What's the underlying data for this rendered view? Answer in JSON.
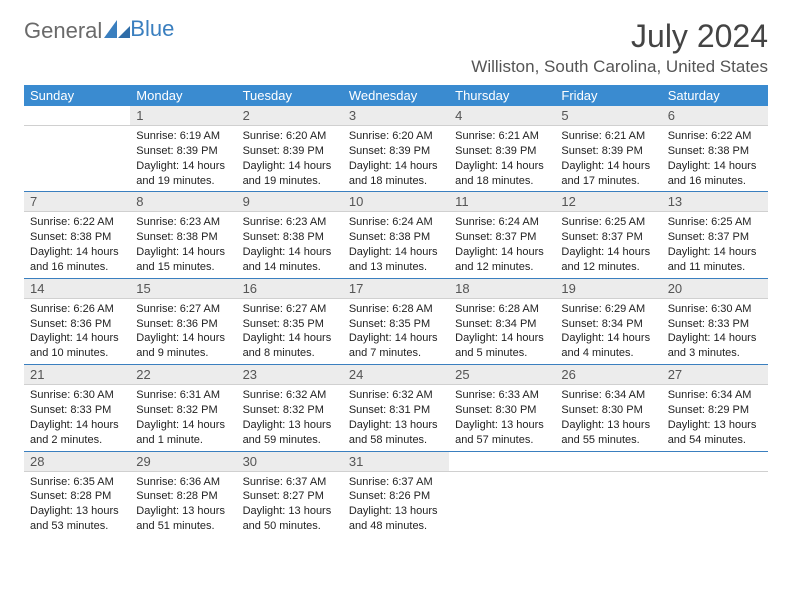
{
  "brand": {
    "general": "General",
    "blue": "Blue"
  },
  "title": "July 2024",
  "location": "Williston, South Carolina, United States",
  "colors": {
    "header_bg": "#3a8bd0",
    "header_text": "#ffffff",
    "daynum_bg": "#ececec",
    "row_sep": "#3a7fbf",
    "text": "#222222",
    "logo_gray": "#6a6a6a",
    "logo_blue": "#3a7fbf"
  },
  "weekdays": [
    "Sunday",
    "Monday",
    "Tuesday",
    "Wednesday",
    "Thursday",
    "Friday",
    "Saturday"
  ],
  "weeks": [
    [
      {
        "n": "",
        "sr": "",
        "ss": "",
        "dl": ""
      },
      {
        "n": "1",
        "sr": "Sunrise: 6:19 AM",
        "ss": "Sunset: 8:39 PM",
        "dl": "Daylight: 14 hours and 19 minutes."
      },
      {
        "n": "2",
        "sr": "Sunrise: 6:20 AM",
        "ss": "Sunset: 8:39 PM",
        "dl": "Daylight: 14 hours and 19 minutes."
      },
      {
        "n": "3",
        "sr": "Sunrise: 6:20 AM",
        "ss": "Sunset: 8:39 PM",
        "dl": "Daylight: 14 hours and 18 minutes."
      },
      {
        "n": "4",
        "sr": "Sunrise: 6:21 AM",
        "ss": "Sunset: 8:39 PM",
        "dl": "Daylight: 14 hours and 18 minutes."
      },
      {
        "n": "5",
        "sr": "Sunrise: 6:21 AM",
        "ss": "Sunset: 8:39 PM",
        "dl": "Daylight: 14 hours and 17 minutes."
      },
      {
        "n": "6",
        "sr": "Sunrise: 6:22 AM",
        "ss": "Sunset: 8:38 PM",
        "dl": "Daylight: 14 hours and 16 minutes."
      }
    ],
    [
      {
        "n": "7",
        "sr": "Sunrise: 6:22 AM",
        "ss": "Sunset: 8:38 PM",
        "dl": "Daylight: 14 hours and 16 minutes."
      },
      {
        "n": "8",
        "sr": "Sunrise: 6:23 AM",
        "ss": "Sunset: 8:38 PM",
        "dl": "Daylight: 14 hours and 15 minutes."
      },
      {
        "n": "9",
        "sr": "Sunrise: 6:23 AM",
        "ss": "Sunset: 8:38 PM",
        "dl": "Daylight: 14 hours and 14 minutes."
      },
      {
        "n": "10",
        "sr": "Sunrise: 6:24 AM",
        "ss": "Sunset: 8:38 PM",
        "dl": "Daylight: 14 hours and 13 minutes."
      },
      {
        "n": "11",
        "sr": "Sunrise: 6:24 AM",
        "ss": "Sunset: 8:37 PM",
        "dl": "Daylight: 14 hours and 12 minutes."
      },
      {
        "n": "12",
        "sr": "Sunrise: 6:25 AM",
        "ss": "Sunset: 8:37 PM",
        "dl": "Daylight: 14 hours and 12 minutes."
      },
      {
        "n": "13",
        "sr": "Sunrise: 6:25 AM",
        "ss": "Sunset: 8:37 PM",
        "dl": "Daylight: 14 hours and 11 minutes."
      }
    ],
    [
      {
        "n": "14",
        "sr": "Sunrise: 6:26 AM",
        "ss": "Sunset: 8:36 PM",
        "dl": "Daylight: 14 hours and 10 minutes."
      },
      {
        "n": "15",
        "sr": "Sunrise: 6:27 AM",
        "ss": "Sunset: 8:36 PM",
        "dl": "Daylight: 14 hours and 9 minutes."
      },
      {
        "n": "16",
        "sr": "Sunrise: 6:27 AM",
        "ss": "Sunset: 8:35 PM",
        "dl": "Daylight: 14 hours and 8 minutes."
      },
      {
        "n": "17",
        "sr": "Sunrise: 6:28 AM",
        "ss": "Sunset: 8:35 PM",
        "dl": "Daylight: 14 hours and 7 minutes."
      },
      {
        "n": "18",
        "sr": "Sunrise: 6:28 AM",
        "ss": "Sunset: 8:34 PM",
        "dl": "Daylight: 14 hours and 5 minutes."
      },
      {
        "n": "19",
        "sr": "Sunrise: 6:29 AM",
        "ss": "Sunset: 8:34 PM",
        "dl": "Daylight: 14 hours and 4 minutes."
      },
      {
        "n": "20",
        "sr": "Sunrise: 6:30 AM",
        "ss": "Sunset: 8:33 PM",
        "dl": "Daylight: 14 hours and 3 minutes."
      }
    ],
    [
      {
        "n": "21",
        "sr": "Sunrise: 6:30 AM",
        "ss": "Sunset: 8:33 PM",
        "dl": "Daylight: 14 hours and 2 minutes."
      },
      {
        "n": "22",
        "sr": "Sunrise: 6:31 AM",
        "ss": "Sunset: 8:32 PM",
        "dl": "Daylight: 14 hours and 1 minute."
      },
      {
        "n": "23",
        "sr": "Sunrise: 6:32 AM",
        "ss": "Sunset: 8:32 PM",
        "dl": "Daylight: 13 hours and 59 minutes."
      },
      {
        "n": "24",
        "sr": "Sunrise: 6:32 AM",
        "ss": "Sunset: 8:31 PM",
        "dl": "Daylight: 13 hours and 58 minutes."
      },
      {
        "n": "25",
        "sr": "Sunrise: 6:33 AM",
        "ss": "Sunset: 8:30 PM",
        "dl": "Daylight: 13 hours and 57 minutes."
      },
      {
        "n": "26",
        "sr": "Sunrise: 6:34 AM",
        "ss": "Sunset: 8:30 PM",
        "dl": "Daylight: 13 hours and 55 minutes."
      },
      {
        "n": "27",
        "sr": "Sunrise: 6:34 AM",
        "ss": "Sunset: 8:29 PM",
        "dl": "Daylight: 13 hours and 54 minutes."
      }
    ],
    [
      {
        "n": "28",
        "sr": "Sunrise: 6:35 AM",
        "ss": "Sunset: 8:28 PM",
        "dl": "Daylight: 13 hours and 53 minutes."
      },
      {
        "n": "29",
        "sr": "Sunrise: 6:36 AM",
        "ss": "Sunset: 8:28 PM",
        "dl": "Daylight: 13 hours and 51 minutes."
      },
      {
        "n": "30",
        "sr": "Sunrise: 6:37 AM",
        "ss": "Sunset: 8:27 PM",
        "dl": "Daylight: 13 hours and 50 minutes."
      },
      {
        "n": "31",
        "sr": "Sunrise: 6:37 AM",
        "ss": "Sunset: 8:26 PM",
        "dl": "Daylight: 13 hours and 48 minutes."
      },
      {
        "n": "",
        "sr": "",
        "ss": "",
        "dl": ""
      },
      {
        "n": "",
        "sr": "",
        "ss": "",
        "dl": ""
      },
      {
        "n": "",
        "sr": "",
        "ss": "",
        "dl": ""
      }
    ]
  ]
}
